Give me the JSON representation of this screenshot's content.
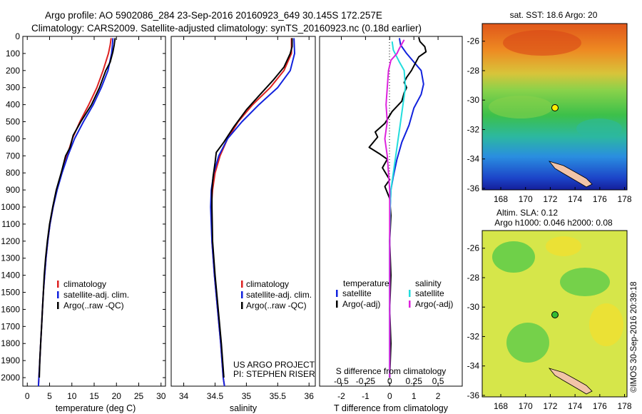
{
  "header": {
    "line1": "Argo profile: AO 5902086_284 23-Sep-2016 20160923_649 30.145S 172.257E",
    "line2": "Climatology: CARS2009. Satellite-adjusted climatology: synTS_20160923.nc (0.18d earlier)"
  },
  "credit": {
    "project": "US ARGO PROJECT",
    "pi": "PI: STEPHEN RISER",
    "imos": "©IMOS 30-Sep-2016 20:39:18"
  },
  "colors": {
    "climatology": "#dd2222",
    "satellite": "#1122dd",
    "argo": "#000000",
    "salinity_satellite": "#22dddd",
    "salinity_argo": "#dd22dd",
    "marker": "#ffee00"
  },
  "chart_data": [
    {
      "type": "line",
      "panel": "temperature",
      "xlabel": "temperature (deg C)",
      "ylim": [
        2050,
        0
      ],
      "xlim": [
        -1,
        31
      ],
      "xticks": [
        0,
        5,
        10,
        15,
        20,
        25,
        30
      ],
      "yticks": [
        0,
        100,
        200,
        300,
        400,
        500,
        600,
        700,
        800,
        900,
        1000,
        1100,
        1200,
        1300,
        1400,
        1500,
        1600,
        1700,
        1800,
        1900,
        2000
      ],
      "legend": [
        "climatology",
        "satellite-adj. clim.",
        "Argo(..raw -QC)"
      ],
      "series": [
        {
          "name": "climatology",
          "color": "#dd2222",
          "points": [
            [
              18.8,
              10
            ],
            [
              18.6,
              50
            ],
            [
              18.2,
              100
            ],
            [
              17.0,
              200
            ],
            [
              15.6,
              300
            ],
            [
              13.8,
              400
            ],
            [
              11.8,
              500
            ],
            [
              10.1,
              600
            ],
            [
              8.9,
              700
            ],
            [
              7.7,
              800
            ],
            [
              6.6,
              900
            ],
            [
              5.8,
              1000
            ],
            [
              5.1,
              1100
            ],
            [
              4.6,
              1200
            ],
            [
              4.2,
              1300
            ],
            [
              3.9,
              1400
            ],
            [
              3.6,
              1500
            ],
            [
              3.4,
              1600
            ],
            [
              3.2,
              1700
            ],
            [
              3.0,
              1800
            ],
            [
              2.8,
              1900
            ],
            [
              2.6,
              2000
            ],
            [
              2.5,
              2050
            ]
          ]
        },
        {
          "name": "satellite-adj. clim.",
          "color": "#1122dd",
          "points": [
            [
              19.2,
              10
            ],
            [
              19.1,
              50
            ],
            [
              18.9,
              100
            ],
            [
              18.1,
              200
            ],
            [
              16.6,
              300
            ],
            [
              14.8,
              400
            ],
            [
              12.6,
              500
            ],
            [
              10.6,
              600
            ],
            [
              9.1,
              700
            ],
            [
              7.8,
              800
            ],
            [
              6.7,
              900
            ],
            [
              5.8,
              1000
            ],
            [
              5.1,
              1100
            ],
            [
              4.6,
              1200
            ],
            [
              4.2,
              1300
            ],
            [
              3.9,
              1400
            ],
            [
              3.6,
              1500
            ],
            [
              3.4,
              1600
            ],
            [
              3.2,
              1700
            ],
            [
              3.0,
              1800
            ],
            [
              2.8,
              1900
            ],
            [
              2.6,
              2000
            ],
            [
              2.5,
              2050
            ]
          ]
        },
        {
          "name": "Argo(..raw -QC)",
          "color": "#000000",
          "points": [
            [
              19.7,
              10
            ],
            [
              19.5,
              50
            ],
            [
              19.2,
              90
            ],
            [
              18.6,
              150
            ],
            [
              17.6,
              200
            ],
            [
              16.2,
              300
            ],
            [
              14.4,
              400
            ],
            [
              12.0,
              500
            ],
            [
              10.3,
              580
            ],
            [
              9.6,
              650
            ],
            [
              8.6,
              700
            ],
            [
              7.6,
              800
            ],
            [
              6.5,
              900
            ],
            [
              5.7,
              1000
            ],
            [
              5.0,
              1100
            ],
            [
              4.5,
              1200
            ],
            [
              4.1,
              1300
            ],
            [
              3.8,
              1400
            ],
            [
              3.6,
              1500
            ],
            [
              3.4,
              1600
            ],
            [
              3.2,
              1700
            ],
            [
              3.0,
              1800
            ],
            [
              2.8,
              1900
            ],
            [
              2.7,
              2000
            ]
          ]
        }
      ]
    },
    {
      "type": "line",
      "panel": "salinity",
      "xlabel": "salinity",
      "ylim": [
        2050,
        0
      ],
      "xlim": [
        33.8,
        36.1
      ],
      "xticks": [
        34,
        34.5,
        35,
        35.5,
        36
      ],
      "legend": [
        "climatology",
        "satellite-adj. clim.",
        "Argo(..raw -QC)"
      ],
      "series": [
        {
          "name": "climatology",
          "color": "#dd2222",
          "points": [
            [
              35.72,
              10
            ],
            [
              35.72,
              100
            ],
            [
              35.6,
              200
            ],
            [
              35.38,
              300
            ],
            [
              35.1,
              400
            ],
            [
              34.87,
              500
            ],
            [
              34.7,
              600
            ],
            [
              34.58,
              700
            ],
            [
              34.5,
              800
            ],
            [
              34.46,
              900
            ],
            [
              34.44,
              1000
            ],
            [
              34.45,
              1200
            ],
            [
              34.49,
              1400
            ],
            [
              34.54,
              1600
            ],
            [
              34.59,
              1800
            ],
            [
              34.63,
              2000
            ],
            [
              34.65,
              2050
            ]
          ]
        },
        {
          "name": "satellite-adj. clim.",
          "color": "#1122dd",
          "points": [
            [
              35.76,
              10
            ],
            [
              35.77,
              100
            ],
            [
              35.7,
              200
            ],
            [
              35.5,
              300
            ],
            [
              35.2,
              400
            ],
            [
              34.93,
              500
            ],
            [
              34.7,
              600
            ],
            [
              34.56,
              700
            ],
            [
              34.48,
              800
            ],
            [
              34.44,
              900
            ],
            [
              34.43,
              1000
            ],
            [
              34.45,
              1200
            ],
            [
              34.49,
              1400
            ],
            [
              34.54,
              1600
            ],
            [
              34.59,
              1800
            ],
            [
              34.63,
              2000
            ],
            [
              34.65,
              2050
            ]
          ]
        },
        {
          "name": "Argo(..raw -QC)",
          "color": "#000000",
          "points": [
            [
              35.73,
              10
            ],
            [
              35.73,
              60
            ],
            [
              35.7,
              100
            ],
            [
              35.6,
              180
            ],
            [
              35.42,
              260
            ],
            [
              35.22,
              340
            ],
            [
              35.0,
              430
            ],
            [
              34.8,
              530
            ],
            [
              34.64,
              620
            ],
            [
              34.52,
              680
            ],
            [
              34.5,
              740
            ],
            [
              34.47,
              820
            ],
            [
              34.45,
              900
            ],
            [
              34.45,
              1000
            ],
            [
              34.46,
              1200
            ],
            [
              34.5,
              1400
            ],
            [
              34.55,
              1600
            ],
            [
              34.6,
              1800
            ],
            [
              34.64,
              2000
            ]
          ]
        }
      ]
    },
    {
      "type": "line",
      "panel": "difference",
      "xlabel": "T difference from climatology",
      "xlabel_top": "S difference from climatology",
      "ylim": [
        2050,
        0
      ],
      "xlim": [
        -2.9,
        3.0
      ],
      "xticks": [
        -2,
        -1,
        0,
        1,
        2
      ],
      "xticks_top": [
        -0.5,
        -0.25,
        0,
        0.25,
        0.5
      ],
      "legend_title_t": "temperature",
      "legend_title_s": "salinity",
      "legend": [
        "satellite",
        "Argo(-adj)",
        "satellite",
        "Argo(-adj)"
      ],
      "series": [
        {
          "name": "temperature satellite",
          "color": "#1122dd",
          "points": [
            [
              0.4,
              10
            ],
            [
              0.45,
              50
            ],
            [
              0.7,
              100
            ],
            [
              1.0,
              150
            ],
            [
              1.3,
              200
            ],
            [
              1.4,
              280
            ],
            [
              1.3,
              340
            ],
            [
              1.0,
              420
            ],
            [
              0.8,
              520
            ],
            [
              0.5,
              620
            ],
            [
              0.3,
              720
            ],
            [
              0.15,
              820
            ],
            [
              0.05,
              900
            ],
            [
              0.02,
              1000
            ],
            [
              0.0,
              1200
            ],
            [
              0.0,
              1500
            ],
            [
              0.0,
              1800
            ],
            [
              0.0,
              2000
            ]
          ]
        },
        {
          "name": "temperature Argo(-adj)",
          "color": "#000000",
          "points": [
            [
              1.2,
              5
            ],
            [
              1.25,
              30
            ],
            [
              1.45,
              60
            ],
            [
              1.5,
              90
            ],
            [
              1.2,
              120
            ],
            [
              1.05,
              160
            ],
            [
              0.9,
              200
            ],
            [
              0.7,
              240
            ],
            [
              0.6,
              270
            ],
            [
              0.7,
              300
            ],
            [
              0.6,
              330
            ],
            [
              0.5,
              380
            ],
            [
              0.1,
              440
            ],
            [
              -0.2,
              510
            ],
            [
              -0.6,
              560
            ],
            [
              -0.5,
              590
            ],
            [
              -0.85,
              650
            ],
            [
              -0.4,
              690
            ],
            [
              -0.1,
              720
            ],
            [
              -0.3,
              770
            ],
            [
              0.0,
              840
            ],
            [
              -0.2,
              880
            ],
            [
              0.0,
              950
            ],
            [
              0.05,
              1050
            ],
            [
              0.0,
              1200
            ],
            [
              0.05,
              1400
            ],
            [
              0.0,
              1600
            ],
            [
              0.05,
              1800
            ],
            [
              0.0,
              2000
            ]
          ]
        },
        {
          "name": "salinity satellite",
          "color": "#22dddd",
          "points": [
            [
              0.1,
              30
            ],
            [
              0.15,
              80
            ],
            [
              0.4,
              150
            ],
            [
              0.6,
              200
            ],
            [
              0.65,
              300
            ],
            [
              0.55,
              400
            ],
            [
              0.45,
              500
            ],
            [
              0.35,
              600
            ],
            [
              0.25,
              700
            ],
            [
              0.15,
              800
            ],
            [
              0.05,
              900
            ],
            [
              0.02,
              1000
            ],
            [
              0.0,
              1200
            ],
            [
              0.0,
              1500
            ],
            [
              0.0,
              1800
            ],
            [
              0.0,
              2000
            ]
          ]
        },
        {
          "name": "salinity Argo(-adj)",
          "color": "#dd22dd",
          "points": [
            [
              0.6,
              20
            ],
            [
              0.4,
              70
            ],
            [
              0.3,
              100
            ],
            [
              0.05,
              140
            ],
            [
              -0.05,
              200
            ],
            [
              -0.1,
              300
            ],
            [
              -0.15,
              400
            ],
            [
              -0.1,
              500
            ],
            [
              -0.2,
              600
            ],
            [
              -0.1,
              700
            ],
            [
              -0.05,
              800
            ],
            [
              0.0,
              900
            ],
            [
              0.0,
              1000
            ],
            [
              0.0,
              1200
            ],
            [
              0.0,
              1500
            ],
            [
              0.0,
              1800
            ],
            [
              0.0,
              2000
            ]
          ]
        }
      ]
    }
  ],
  "maps": [
    {
      "title": "sat. SST: 18.6 Argo: 20",
      "xticks": [
        168,
        170,
        172,
        174,
        176,
        178
      ],
      "yticks": [
        -26,
        -28,
        -30,
        -32,
        -34,
        -36
      ]
    },
    {
      "title_line1": "Altim. SLA: 0.12",
      "title_line2": "Argo h1000: 0.046 h2000: 0.08",
      "xticks": [
        168,
        170,
        172,
        174,
        176,
        178
      ],
      "yticks": [
        -26,
        -28,
        -30,
        -32,
        -34,
        -36
      ]
    }
  ]
}
